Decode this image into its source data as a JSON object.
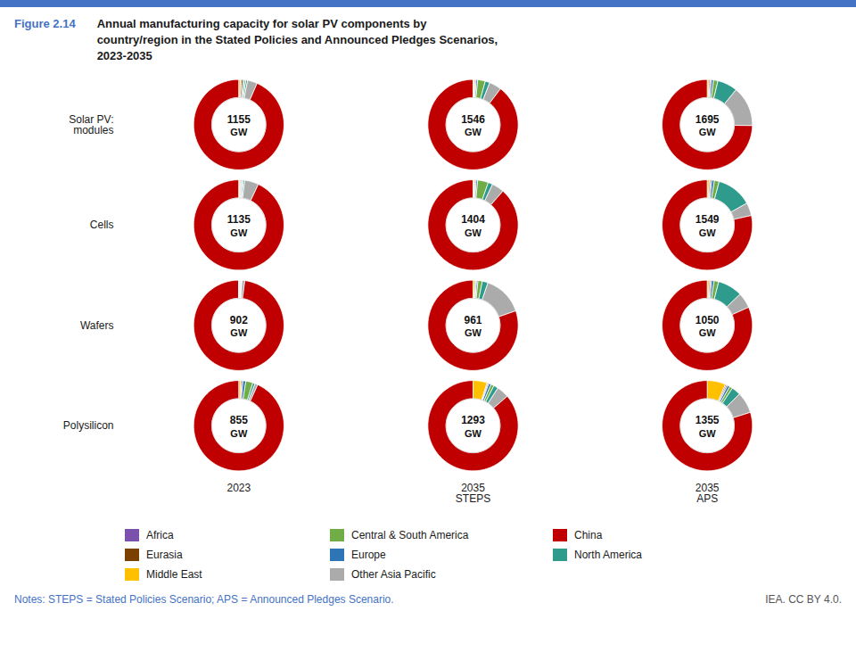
{
  "chart_data": {
    "type": "donut",
    "figure_label": "Figure 2.14",
    "title": "Annual manufacturing capacity for solar PV components by\ncountry/region in the Stated Policies and Announced Pledges Scenarios,\n2023-2035",
    "color": "#4472C4",
    "rows": [
      "Solar PV:\nmodules",
      "Cells",
      "Wafers",
      "Polysilicon"
    ],
    "columns": [
      "2023",
      "2035\nSTEPS",
      "2035\nAPS"
    ],
    "categories": [
      "China",
      "Other Asia Pacific",
      "North America",
      "Central & South America",
      "Europe",
      "Eurasia",
      "Africa",
      "Middle East"
    ],
    "colors": [
      "#C00000",
      "#ABABAB",
      "#2E9B8C",
      "#70AD47",
      "#2E75B6",
      "#7B3F00",
      "#7B52AB",
      "#FFC000"
    ],
    "unit": "GW",
    "charts": [
      [
        {
          "total": 1155,
          "values": [
            93.5,
            3.5,
            0.6,
            0.5,
            0.5,
            0.6,
            0.4,
            0.4
          ]
        },
        {
          "total": 1546,
          "values": [
            82,
            4,
            1.5,
            2.5,
            0.5,
            0.3,
            0.3,
            0.3
          ]
        },
        {
          "total": 1695,
          "values": [
            73,
            14,
            7,
            1.5,
            0.8,
            0.4,
            0.4,
            0.5
          ]
        }
      ],
      [
        {
          "total": 1135,
          "values": [
            93,
            5,
            0.5,
            0.3,
            0.4,
            0.3,
            0.3,
            0.2
          ]
        },
        {
          "total": 1404,
          "values": [
            81,
            4,
            1.5,
            3.5,
            0.5,
            0.3,
            0.3,
            0.3
          ]
        },
        {
          "total": 1549,
          "values": [
            68,
            4,
            11,
            1.5,
            0.8,
            0.4,
            0.4,
            0.5
          ]
        }
      ],
      [
        {
          "total": 902,
          "values": [
            98,
            1,
            0.2,
            0.1,
            0.3,
            0.2,
            0.2,
            0.0
          ]
        },
        {
          "total": 961,
          "values": [
            78,
            14,
            2,
            1.5,
            0.5,
            0.3,
            0.3,
            0.5
          ]
        },
        {
          "total": 1050,
          "values": [
            74,
            5,
            8,
            1.5,
            0.8,
            0.4,
            0.4,
            0.5
          ]
        }
      ],
      [
        {
          "total": 855,
          "values": [
            91,
            1,
            0.8,
            2.5,
            1.0,
            0.4,
            0.4,
            0.5
          ]
        },
        {
          "total": 1293,
          "values": [
            79,
            4,
            1.5,
            1.0,
            0.8,
            0.3,
            0.3,
            4.5
          ]
        },
        {
          "total": 1355,
          "values": [
            74,
            7,
            3.0,
            1.0,
            0.8,
            0.4,
            0.4,
            6.0
          ]
        }
      ]
    ],
    "legend": "bottom",
    "legend_entries": [
      "Africa",
      "Central & South America",
      "China",
      "Eurasia",
      "Europe",
      "North America",
      "Middle East",
      "Other Asia Pacific"
    ],
    "notes": "Notes: STEPS = Stated Policies Scenario; APS = Announced Pledges Scenario.",
    "source": "IEA. CC BY 4.0."
  }
}
